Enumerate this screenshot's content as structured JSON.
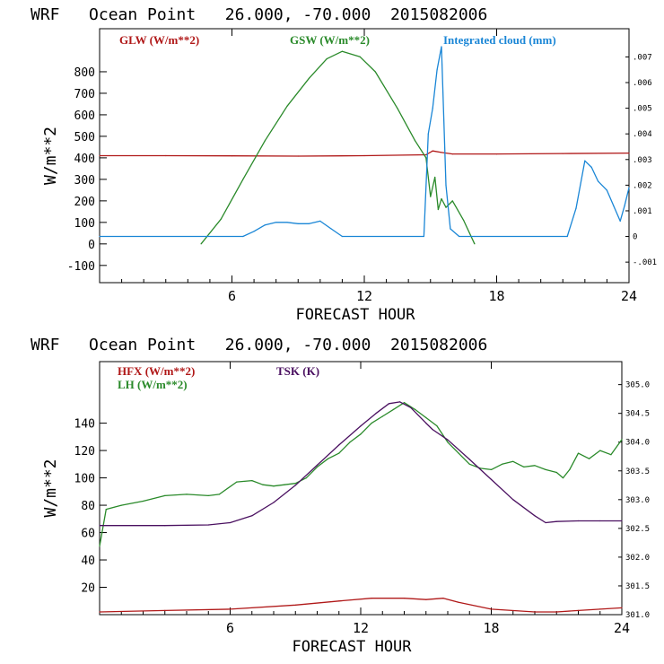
{
  "chart_data": [
    {
      "type": "line",
      "title": "WRF   Ocean Point   26.000, -70.000  2015082006",
      "xlabel": "FORECAST HOUR",
      "ylabel": "W/m**2",
      "xlim": [
        0,
        24
      ],
      "ylim": [
        -180,
        1000
      ],
      "y2lim": [
        -0.0018,
        0.0081
      ],
      "x_ticks": [
        6,
        12,
        18,
        24
      ],
      "y_ticks": [
        -100,
        0,
        100,
        200,
        300,
        400,
        500,
        600,
        700,
        800
      ],
      "y_tick_labels": [
        "-100",
        "0",
        "100",
        "200",
        "300",
        "400",
        "500",
        "600",
        "700",
        "800"
      ],
      "y2_ticks": [
        -0.001,
        0,
        0.001,
        0.002,
        0.003,
        0.004,
        0.005,
        0.006,
        0.007
      ],
      "y2_tick_labels": [
        "-.001",
        "0",
        ".001",
        ".002",
        ".003",
        ".004",
        ".005",
        ".006",
        ".007"
      ],
      "series": [
        {
          "name": "GLW (W/m**2)",
          "color": "#b01818",
          "axis": "left",
          "x": [
            0,
            3,
            6,
            9,
            12,
            14.8,
            15.1,
            15.5,
            16,
            18,
            21,
            24
          ],
          "values": [
            410,
            410,
            409,
            408,
            410,
            414,
            432,
            425,
            418,
            418,
            420,
            422
          ]
        },
        {
          "name": "GSW (W/m**2)",
          "color": "#2a8a2a",
          "axis": "left",
          "x": [
            4.6,
            5.5,
            6.5,
            7.5,
            8.5,
            9.5,
            10.3,
            11,
            11.8,
            12.5,
            13.5,
            14.3,
            14.8,
            15.0,
            15.2,
            15.35,
            15.5,
            15.7,
            16,
            16.5,
            17.0
          ],
          "values": [
            0,
            115,
            300,
            480,
            640,
            770,
            860,
            895,
            870,
            800,
            630,
            480,
            400,
            220,
            310,
            160,
            210,
            170,
            200,
            110,
            0
          ]
        },
        {
          "name": "Integrated cloud (mm)",
          "color": "#1a86d6",
          "axis": "right",
          "x": [
            0,
            6.5,
            7,
            7.5,
            8,
            8.5,
            9,
            9.5,
            10,
            10.5,
            11,
            14.7,
            14.9,
            15.1,
            15.3,
            15.5,
            15.7,
            15.9,
            16.3,
            17,
            21.2,
            21.6,
            22,
            22.3,
            22.6,
            23,
            23.3,
            23.6,
            23.8,
            24
          ],
          "values": [
            0,
            0,
            0.0002,
            0.00045,
            0.00055,
            0.00055,
            0.0005,
            0.0005,
            0.0006,
            0.0003,
            0,
            0,
            0.004,
            0.005,
            0.0065,
            0.0074,
            0.002,
            0.0003,
            0,
            0,
            0,
            0.0011,
            0.00295,
            0.0027,
            0.00215,
            0.0018,
            0.0012,
            0.0006,
            0.0012,
            0.0019
          ]
        }
      ],
      "legend": [
        "GLW (W/m**2)",
        "GSW (W/m**2)",
        "Integrated cloud (mm)"
      ],
      "legend_position": "top"
    },
    {
      "type": "line",
      "title": "WRF   Ocean Point   26.000, -70.000  2015082006",
      "xlabel": "FORECAST HOUR",
      "ylabel": "W/m**2",
      "xlim": [
        0,
        24
      ],
      "ylim": [
        0,
        185
      ],
      "y2lim": [
        301.0,
        305.4
      ],
      "x_ticks": [
        6,
        12,
        18,
        24
      ],
      "y_ticks": [
        20,
        40,
        60,
        80,
        100,
        120,
        140
      ],
      "y_tick_labels": [
        "20",
        "40",
        "60",
        "80",
        "100",
        "120",
        "140"
      ],
      "y2_ticks": [
        301.0,
        301.5,
        302.0,
        302.5,
        303.0,
        303.5,
        304.0,
        304.5,
        305.0
      ],
      "y2_tick_labels": [
        "301.0",
        "301.5",
        "302.0",
        "302.5",
        "303.0",
        "303.5",
        "304.0",
        "304.5",
        "305.0"
      ],
      "series": [
        {
          "name": "HFX (W/m**2)",
          "color": "#b01818",
          "axis": "left",
          "x": [
            0,
            3,
            6,
            9,
            11,
            12.5,
            14,
            15,
            15.8,
            16.5,
            18,
            20,
            21,
            22,
            23,
            24
          ],
          "values": [
            2,
            3,
            4,
            7,
            10,
            12,
            12,
            11,
            12,
            9,
            4,
            2,
            2,
            3,
            4,
            5
          ]
        },
        {
          "name": "LH (W/m**2)",
          "color": "#2a8a2a",
          "axis": "left",
          "x": [
            0,
            0.3,
            1,
            2,
            3,
            4,
            5,
            5.5,
            6.3,
            7,
            7.5,
            8,
            8.5,
            9,
            9.5,
            10,
            10.5,
            11,
            11.5,
            12,
            12.5,
            13,
            13.5,
            14,
            14.5,
            15,
            15.5,
            16,
            16.5,
            17,
            17.5,
            18,
            18.5,
            19,
            19.5,
            20,
            20.5,
            21,
            21.3,
            21.6,
            22,
            22.5,
            23,
            23.5,
            24
          ],
          "values": [
            50,
            77,
            80,
            83,
            87,
            88,
            87,
            88,
            97,
            98,
            95,
            94,
            95,
            96,
            100,
            108,
            114,
            118,
            126,
            132,
            140,
            145,
            150,
            155,
            150,
            144,
            138,
            126,
            118,
            110,
            107,
            106,
            110,
            112,
            108,
            109,
            106,
            104,
            100,
            106,
            118,
            114,
            120,
            117,
            128
          ]
        },
        {
          "name": "TSK (K)",
          "color": "#4a1060",
          "axis": "right",
          "x": [
            0,
            3,
            5,
            6,
            7,
            8,
            9,
            10,
            11,
            12,
            12.7,
            13.3,
            13.8,
            14.3,
            15,
            15.3,
            16,
            17,
            18,
            19,
            20,
            20.5,
            21,
            22,
            23,
            24
          ],
          "values": [
            302.55,
            302.55,
            302.56,
            302.6,
            302.72,
            302.95,
            303.25,
            303.6,
            303.95,
            304.28,
            304.5,
            304.67,
            304.7,
            304.6,
            304.33,
            304.22,
            304.04,
            303.7,
            303.35,
            303.0,
            302.72,
            302.6,
            302.62,
            302.63,
            302.63,
            302.63
          ]
        }
      ],
      "legend": [
        "HFX (W/m**2)",
        "LH (W/m**2)",
        "TSK (K)"
      ],
      "legend_position": "top-left"
    }
  ]
}
